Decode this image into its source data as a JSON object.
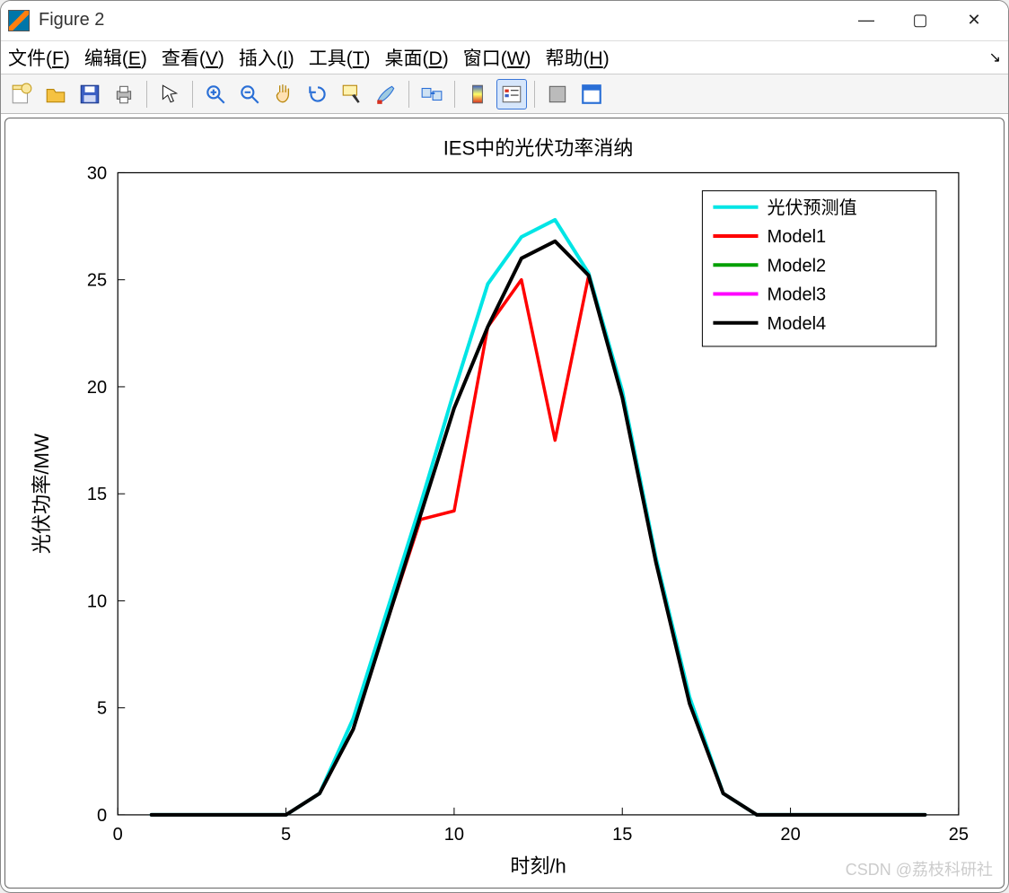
{
  "window": {
    "title": "Figure 2",
    "controls": {
      "min": "—",
      "max": "▢",
      "close": "✕"
    }
  },
  "menu": {
    "items": [
      {
        "label": "文件(F)",
        "u": "F"
      },
      {
        "label": "编辑(E)",
        "u": "E"
      },
      {
        "label": "查看(V)",
        "u": "V"
      },
      {
        "label": "插入(I)",
        "u": "I"
      },
      {
        "label": "工具(T)",
        "u": "T"
      },
      {
        "label": "桌面(D)",
        "u": "D"
      },
      {
        "label": "窗口(W)",
        "u": "W"
      },
      {
        "label": "帮助(H)",
        "u": "H"
      }
    ]
  },
  "toolbar": {
    "buttons": [
      "new-figure-icon",
      "open-icon",
      "save-icon",
      "print-icon",
      "|",
      "pointer-icon",
      "|",
      "zoom-in-icon",
      "zoom-out-icon",
      "pan-icon",
      "rotate-icon",
      "data-cursor-icon",
      "brush-icon",
      "|",
      "link-icon",
      "|",
      "colorbar-icon",
      "legend-icon",
      "|",
      "hide-icon",
      "dock-icon"
    ],
    "selected": "legend-icon"
  },
  "chart": {
    "type": "line",
    "title": "IES中的光伏功率消纳",
    "title_fontsize": 22,
    "xlabel": "时刻/h",
    "ylabel": "光伏功率/MW",
    "label_fontsize": 22,
    "tick_fontsize": 20,
    "xlim": [
      0,
      25
    ],
    "ylim": [
      0,
      30
    ],
    "xtick_step": 5,
    "ytick_step": 5,
    "background_color": "#ffffff",
    "axis_color": "#000000",
    "tick_color": "#000000",
    "line_width_main": 4,
    "line_width_thin": 3.2,
    "legend": {
      "position": "upper-right",
      "box_color": "#000000",
      "bg": "#ffffff",
      "fontsize": 20,
      "items": [
        {
          "label": "光伏预测值",
          "color": "#00e5e5"
        },
        {
          "label": "Model1",
          "color": "#ff0000"
        },
        {
          "label": "Model2",
          "color": "#00a000"
        },
        {
          "label": "Model3",
          "color": "#ff00ff"
        },
        {
          "label": "Model4",
          "color": "#000000"
        }
      ]
    },
    "series": [
      {
        "name": "光伏预测值",
        "color": "#00e5e5",
        "width": 4,
        "x": [
          1,
          2,
          3,
          4,
          5,
          6,
          7,
          8,
          9,
          10,
          11,
          12,
          13,
          14,
          15,
          16,
          17,
          18,
          19,
          20,
          21,
          22,
          23,
          24
        ],
        "y": [
          0,
          0,
          0,
          0,
          0,
          1.0,
          4.5,
          9.5,
          14.5,
          19.8,
          24.8,
          27.0,
          27.8,
          25.3,
          19.8,
          12.0,
          5.5,
          1.0,
          0,
          0,
          0,
          0,
          0,
          0
        ]
      },
      {
        "name": "Model2",
        "color": "#00a000",
        "width": 3.2,
        "x": [
          1,
          2,
          3,
          4,
          5,
          6,
          7,
          8,
          9,
          10,
          11,
          12,
          13,
          14,
          15,
          16,
          17,
          18,
          19,
          20,
          21,
          22,
          23,
          24
        ],
        "y": [
          0,
          0,
          0,
          0,
          0,
          1.0,
          4.0,
          9.0,
          14.0,
          19.0,
          22.8,
          26.0,
          26.8,
          25.2,
          19.5,
          11.8,
          5.2,
          1.0,
          0,
          0,
          0,
          0,
          0,
          0
        ]
      },
      {
        "name": "Model3",
        "color": "#ff00ff",
        "width": 3.2,
        "x": [
          1,
          2,
          3,
          4,
          5,
          6,
          7,
          8,
          9,
          10,
          11,
          12,
          13,
          14,
          15,
          16,
          17,
          18,
          19,
          20,
          21,
          22,
          23,
          24
        ],
        "y": [
          0,
          0,
          0,
          0,
          0,
          1.0,
          4.0,
          9.0,
          14.0,
          19.0,
          22.8,
          26.0,
          26.8,
          25.2,
          19.5,
          11.8,
          5.2,
          1.0,
          0,
          0,
          0,
          0,
          0,
          0
        ]
      },
      {
        "name": "Model1",
        "color": "#ff0000",
        "width": 3.5,
        "x": [
          1,
          2,
          3,
          4,
          5,
          6,
          7,
          8,
          9,
          10,
          11,
          12,
          13,
          14,
          15,
          16,
          17,
          18,
          19,
          20,
          21,
          22,
          23,
          24
        ],
        "y": [
          0,
          0,
          0,
          0,
          0,
          1.0,
          4.0,
          9.0,
          13.8,
          14.2,
          22.8,
          25.0,
          17.5,
          25.2,
          19.5,
          11.8,
          5.2,
          1.0,
          0,
          0,
          0,
          0,
          0,
          0
        ]
      },
      {
        "name": "Model4",
        "color": "#000000",
        "width": 4,
        "x": [
          1,
          2,
          3,
          4,
          5,
          6,
          7,
          8,
          9,
          10,
          11,
          12,
          13,
          14,
          15,
          16,
          17,
          18,
          19,
          20,
          21,
          22,
          23,
          24
        ],
        "y": [
          0,
          0,
          0,
          0,
          0,
          1.0,
          4.0,
          9.0,
          14.0,
          19.0,
          22.8,
          26.0,
          26.8,
          25.2,
          19.5,
          11.8,
          5.2,
          1.0,
          0,
          0,
          0,
          0,
          0,
          0
        ]
      }
    ]
  },
  "watermark": "CSDN @荔枝科研社"
}
